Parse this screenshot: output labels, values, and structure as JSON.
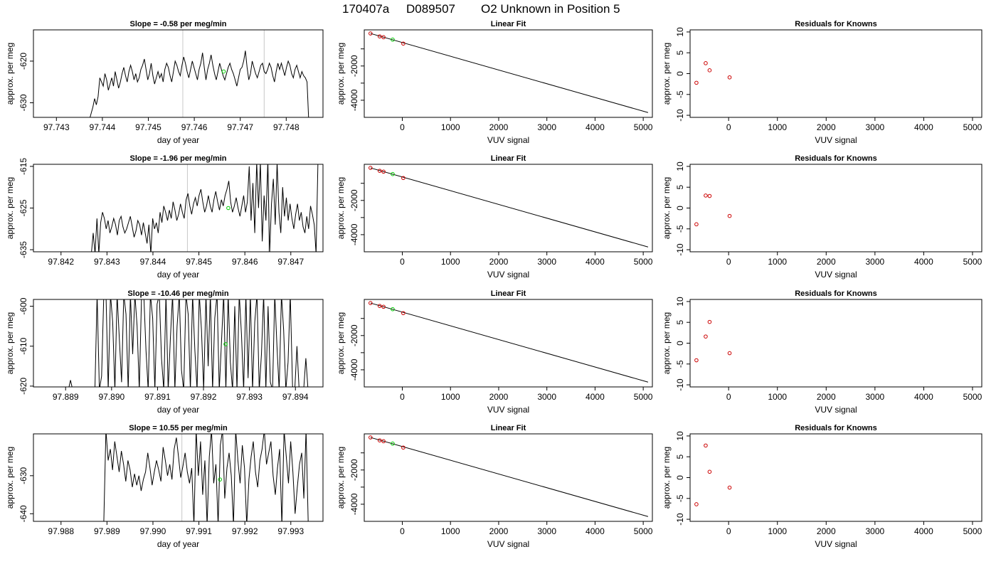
{
  "figure": {
    "title_parts": [
      "170407a",
      "D089507",
      "O2 Unknown in Position  5"
    ]
  },
  "chart_data": [
    {
      "type": "line",
      "title": "Slope =  -0.58  per meg/min",
      "xlabel": "day of year",
      "ylabel": "approx. per meg",
      "xlim": [
        97.7425,
        97.7488
      ],
      "ylim": [
        -633.5,
        -612.5
      ],
      "xticks": [
        97.743,
        97.744,
        97.745,
        97.746,
        97.747,
        97.748
      ],
      "xtick_labels": [
        "97.743",
        "97.744",
        "97.745",
        "97.746",
        "97.747",
        "97.748"
      ],
      "yticks": [
        -630,
        -620
      ],
      "ytick_labels": [
        "-630",
        "-620"
      ],
      "vlines": [
        97.74575,
        97.74752
      ],
      "marker": {
        "x": 97.74664,
        "y": -622.5,
        "color": "#00cc00"
      },
      "x_start": 97.74372,
      "x_end": 97.74849,
      "y": [
        -634,
        -632.5,
        -631,
        -629,
        -630.5,
        -628.5,
        -624,
        -625,
        -626,
        -623,
        -624.5,
        -627,
        -625.5,
        -624,
        -626,
        -622.5,
        -624.5,
        -626.5,
        -625,
        -623,
        -621.5,
        -623.5,
        -625,
        -622.5,
        -621,
        -622.5,
        -624.5,
        -623,
        -625,
        -624,
        -622,
        -621,
        -619.5,
        -622,
        -624.5,
        -623,
        -620.5,
        -623.5,
        -625.5,
        -624,
        -622.5,
        -624,
        -623,
        -625,
        -622,
        -620.5,
        -621.5,
        -623.5,
        -625,
        -622.5,
        -620,
        -621,
        -622.5,
        -623.5,
        -621,
        -619,
        -620.5,
        -622.5,
        -624,
        -622,
        -620,
        -621.5,
        -623,
        -624.5,
        -622,
        -620.5,
        -618,
        -621.5,
        -624.5,
        -622,
        -620.5,
        -618.5,
        -621,
        -623,
        -624.5,
        -622.5,
        -620.5,
        -622,
        -623.5,
        -624.5,
        -623,
        -621.5,
        -620.5,
        -622,
        -623,
        -624.5,
        -626,
        -624,
        -622,
        -621.5,
        -620,
        -617.5,
        -621.5,
        -624.5,
        -623,
        -620,
        -621.5,
        -623,
        -624,
        -622.5,
        -621,
        -620.5,
        -622.5,
        -623,
        -622,
        -620.5,
        -621.5,
        -623.5,
        -625,
        -622.5,
        -620.5,
        -622,
        -620.5,
        -622,
        -623.5,
        -621.5,
        -620,
        -621,
        -623,
        -624,
        -622,
        -621,
        -622.5,
        -624,
        -622.5,
        -623.5,
        -624,
        -625,
        -634.5
      ]
    },
    {
      "type": "scatter",
      "title": "Linear Fit",
      "xlabel": "VUV signal",
      "ylabel": "approx. per meg",
      "xlim": [
        -790,
        5190
      ],
      "ylim": [
        -5000,
        110
      ],
      "xticks": [
        0,
        1000,
        2000,
        3000,
        4000,
        5000
      ],
      "xtick_labels": [
        "0",
        "1000",
        "2000",
        "3000",
        "4000",
        "5000"
      ],
      "yticks": [
        -4000,
        -3000,
        -2000,
        -1000
      ],
      "ytick_labels": [
        "-4000",
        "",
        "-2000",
        ""
      ],
      "fit_line": {
        "x": [
          -660,
          5100
        ],
        "y": [
          -100,
          -4720
        ]
      },
      "knowns": {
        "x": [
          -660,
          -470,
          -390,
          20
        ],
        "y": [
          -100,
          -270,
          -320,
          -690
        ],
        "color": "#cc0000"
      },
      "unknown": {
        "x": [
          -200
        ],
        "y": [
          -460
        ],
        "color": "#00cc00"
      }
    },
    {
      "type": "scatter",
      "title": "Residuals for Knowns",
      "xlabel": "VUV signal",
      "ylabel": "approx. per meg",
      "xlim": [
        -790,
        5190
      ],
      "ylim": [
        -10.5,
        10.5
      ],
      "xticks": [
        0,
        1000,
        2000,
        3000,
        4000,
        5000
      ],
      "xtick_labels": [
        "0",
        "1000",
        "2000",
        "3000",
        "4000",
        "5000"
      ],
      "yticks": [
        -10,
        -5,
        0,
        5,
        10
      ],
      "ytick_labels": [
        "-10",
        "-5",
        "0",
        "5",
        "10"
      ],
      "knowns": {
        "x": [
          -660,
          -470,
          -390,
          20
        ],
        "y": [
          -2.2,
          2.5,
          0.8,
          -0.9
        ],
        "color": "#cc0000"
      }
    },
    {
      "type": "line",
      "title": "Slope =  -1.96  per meg/min",
      "xlabel": "day of year",
      "ylabel": "approx. per meg",
      "xlim": [
        97.8414,
        97.8477
      ],
      "ylim": [
        -635.5,
        -614.5
      ],
      "xticks": [
        97.842,
        97.843,
        97.844,
        97.845,
        97.846,
        97.847
      ],
      "xtick_labels": [
        "97.842",
        "97.843",
        "97.844",
        "97.845",
        "97.846",
        "97.847"
      ],
      "yticks": [
        -635,
        -625,
        -615
      ],
      "ytick_labels": [
        "-635",
        "-625",
        "-615"
      ],
      "vlines": [
        97.84475,
        97.84652
      ],
      "marker": {
        "x": 97.84564,
        "y": -625.0,
        "color": "#00cc00"
      },
      "x_start": 97.84262,
      "x_end": 97.84759,
      "y": [
        -636,
        -636,
        -631,
        -636,
        -627.5,
        -636,
        -628.5,
        -626,
        -627.5,
        -630,
        -628,
        -631,
        -629.5,
        -627.5,
        -629,
        -631.5,
        -628,
        -627,
        -629.5,
        -631,
        -630,
        -628.5,
        -627,
        -629.5,
        -632,
        -630.5,
        -628,
        -629,
        -631.5,
        -628.5,
        -631,
        -633.5,
        -629,
        -636,
        -627.5,
        -630,
        -628.5,
        -631,
        -626,
        -628.5,
        -624.5,
        -626,
        -628,
        -625.5,
        -627.5,
        -623.5,
        -625.5,
        -628,
        -626.5,
        -624,
        -626,
        -627.5,
        -623,
        -621.5,
        -624.5,
        -626.5,
        -624,
        -622.5,
        -624.5,
        -622,
        -620.5,
        -623.5,
        -626,
        -624.5,
        -622,
        -624.5,
        -626,
        -623,
        -621,
        -623.5,
        -625.5,
        -623,
        -624.5,
        -622,
        -620.5,
        -618.5,
        -623.5,
        -626,
        -624.5,
        -622.5,
        -625,
        -627,
        -624.5,
        -622,
        -626,
        -623.5,
        -615,
        -628,
        -619,
        -631,
        -614,
        -625,
        -614,
        -633,
        -622,
        -628,
        -614,
        -636,
        -624,
        -618,
        -629,
        -614,
        -626,
        -631,
        -620,
        -627,
        -622.5,
        -628,
        -624,
        -627.5,
        -630,
        -626.5,
        -624,
        -628,
        -626,
        -629.5,
        -631,
        -627,
        -630,
        -624.5,
        -626.5,
        -629,
        -636,
        -614
      ]
    },
    {
      "type": "scatter",
      "title": "Linear Fit",
      "xlabel": "VUV signal",
      "ylabel": "approx. per meg",
      "xlim": [
        -790,
        5190
      ],
      "ylim": [
        -5000,
        110
      ],
      "xticks": [
        0,
        1000,
        2000,
        3000,
        4000,
        5000
      ],
      "xtick_labels": [
        "0",
        "1000",
        "2000",
        "3000",
        "4000",
        "5000"
      ],
      "yticks": [
        -4000,
        -3000,
        -2000,
        -1000
      ],
      "ytick_labels": [
        "-4000",
        "",
        "-2000",
        ""
      ],
      "fit_line": {
        "x": [
          -660,
          5100
        ],
        "y": [
          -100,
          -4720
        ]
      },
      "knowns": {
        "x": [
          -660,
          -470,
          -390,
          20
        ],
        "y": [
          -100,
          -270,
          -320,
          -690
        ],
        "color": "#cc0000"
      },
      "unknown": {
        "x": [
          -200
        ],
        "y": [
          -460
        ],
        "color": "#00cc00"
      }
    },
    {
      "type": "scatter",
      "title": "Residuals for Knowns",
      "xlabel": "VUV signal",
      "ylabel": "approx. per meg",
      "xlim": [
        -790,
        5190
      ],
      "ylim": [
        -10.5,
        10.5
      ],
      "xticks": [
        0,
        1000,
        2000,
        3000,
        4000,
        5000
      ],
      "xtick_labels": [
        "0",
        "1000",
        "2000",
        "3000",
        "4000",
        "5000"
      ],
      "yticks": [
        -10,
        -5,
        0,
        5,
        10
      ],
      "ytick_labels": [
        "-10",
        "-5",
        "0",
        "5",
        "10"
      ],
      "knowns": {
        "x": [
          -660,
          -470,
          -390,
          20
        ],
        "y": [
          -3.9,
          3.0,
          2.9,
          -1.9
        ],
        "color": "#cc0000"
      }
    },
    {
      "type": "line",
      "title": "Slope =  -10.46  per meg/min",
      "xlabel": "day of year",
      "ylabel": "approx. per meg",
      "xlim": [
        97.8883,
        97.8946
      ],
      "ylim": [
        -620.2,
        -598.3
      ],
      "xticks": [
        97.889,
        97.89,
        97.891,
        97.892,
        97.893,
        97.894
      ],
      "xtick_labels": [
        "97.889",
        "97.890",
        "97.891",
        "97.892",
        "97.893",
        "97.894"
      ],
      "yticks": [
        -620,
        -610,
        -600
      ],
      "ytick_labels": [
        "-620",
        "-610",
        "-600"
      ],
      "marker": {
        "x": 97.89248,
        "y": -609.5,
        "color": "#00cc00"
      },
      "x_start": 97.88843,
      "x_end": 97.89442,
      "y": [
        -621,
        -621,
        -621,
        -621,
        -621,
        -621,
        -621,
        -621,
        -621,
        -621,
        -621,
        -621,
        -621,
        -621,
        -618.5,
        -621,
        -621,
        -621,
        -621,
        -621,
        -621,
        -621,
        -621,
        -621,
        -621,
        -621,
        -597,
        -621,
        -617.5,
        -597,
        -597,
        -621,
        -597,
        -604,
        -621,
        -597,
        -608,
        -619,
        -597,
        -602,
        -621,
        -597,
        -612,
        -597,
        -605,
        -621,
        -597,
        -597,
        -611,
        -621,
        -597,
        -603,
        -621,
        -599.5,
        -597,
        -613,
        -621,
        -597,
        -621,
        -608,
        -597,
        -621,
        -605,
        -597,
        -616,
        -621,
        -597,
        -602,
        -621,
        -597,
        -611,
        -621,
        -597,
        -606,
        -621,
        -597,
        -615,
        -597,
        -621,
        -603,
        -597,
        -621,
        -609,
        -597,
        -621,
        -597,
        -614,
        -621,
        -600,
        -621,
        -597,
        -607,
        -621,
        -597,
        -618,
        -597,
        -621,
        -604,
        -597,
        -621,
        -612,
        -597,
        -621,
        -600,
        -619,
        -621,
        -597,
        -610,
        -621,
        -597,
        -606,
        -621,
        -614,
        -597,
        -620,
        -621,
        -610,
        -621,
        -621,
        -621,
        -613,
        -621,
        -621,
        -621,
        -621
      ]
    },
    {
      "type": "scatter",
      "title": "Linear Fit",
      "xlabel": "VUV signal",
      "ylabel": "approx. per meg",
      "xlim": [
        -790,
        5190
      ],
      "ylim": [
        -5000,
        110
      ],
      "xticks": [
        0,
        1000,
        2000,
        3000,
        4000,
        5000
      ],
      "xtick_labels": [
        "0",
        "1000",
        "2000",
        "3000",
        "4000",
        "5000"
      ],
      "yticks": [
        -4000,
        -3000,
        -2000,
        -1000
      ],
      "ytick_labels": [
        "-4000",
        "",
        "-2000",
        ""
      ],
      "fit_line": {
        "x": [
          -660,
          5100
        ],
        "y": [
          -100,
          -4720
        ]
      },
      "knowns": {
        "x": [
          -660,
          -470,
          -390,
          20
        ],
        "y": [
          -100,
          -270,
          -320,
          -690
        ],
        "color": "#cc0000"
      },
      "unknown": {
        "x": [
          -200
        ],
        "y": [
          -460
        ],
        "color": "#00cc00"
      }
    },
    {
      "type": "scatter",
      "title": "Residuals for Knowns",
      "xlabel": "VUV signal",
      "ylabel": "approx. per meg",
      "xlim": [
        -790,
        5190
      ],
      "ylim": [
        -10.5,
        10.5
      ],
      "xticks": [
        0,
        1000,
        2000,
        3000,
        4000,
        5000
      ],
      "xtick_labels": [
        "0",
        "1000",
        "2000",
        "3000",
        "4000",
        "5000"
      ],
      "yticks": [
        -10,
        -5,
        0,
        5,
        10
      ],
      "ytick_labels": [
        "-10",
        "-5",
        "0",
        "5",
        "10"
      ],
      "knowns": {
        "x": [
          -660,
          -470,
          -390,
          20
        ],
        "y": [
          -4.1,
          1.6,
          5.1,
          -2.4
        ],
        "color": "#cc0000"
      }
    },
    {
      "type": "line",
      "title": "Slope =  10.55  per meg/min",
      "xlabel": "day of year",
      "ylabel": "approx. per meg",
      "xlim": [
        97.9874,
        97.9937
      ],
      "ylim": [
        -642,
        -619
      ],
      "xticks": [
        97.988,
        97.989,
        97.99,
        97.991,
        97.992,
        97.993
      ],
      "xtick_labels": [
        "97.988",
        "97.989",
        "97.990",
        "97.991",
        "97.992",
        "97.993"
      ],
      "yticks": [
        -640,
        -630
      ],
      "ytick_labels": [
        "-640",
        "-630"
      ],
      "vlines": [
        97.99063
      ],
      "marker": {
        "x": 97.99146,
        "y": -631.0,
        "color": "#00cc00"
      },
      "x_start": 97.98893,
      "x_end": 97.99338,
      "y": [
        -643,
        -618,
        -626,
        -623,
        -628.5,
        -621,
        -625,
        -629,
        -623.5,
        -627,
        -631.5,
        -626,
        -628.5,
        -633,
        -629.5,
        -632.5,
        -630,
        -634,
        -631,
        -629,
        -624,
        -628,
        -632.5,
        -629,
        -626,
        -628.5,
        -631.5,
        -622.5,
        -626,
        -630,
        -627,
        -631,
        -623,
        -620,
        -625,
        -630.5,
        -627.5,
        -624,
        -629,
        -632,
        -628,
        -643,
        -618,
        -630,
        -621,
        -635,
        -626,
        -643,
        -625,
        -618,
        -632,
        -627,
        -643,
        -622,
        -618,
        -636,
        -628,
        -624,
        -630,
        -643,
        -618,
        -626,
        -632,
        -622,
        -628,
        -643,
        -631,
        -625,
        -621,
        -629,
        -633,
        -626,
        -623,
        -618,
        -627,
        -624,
        -621,
        -630,
        -635,
        -628,
        -623,
        -643,
        -618,
        -625,
        -632,
        -621,
        -629,
        -640,
        -633,
        -627,
        -624,
        -636,
        -618,
        -643
      ]
    },
    {
      "type": "scatter",
      "title": "Linear Fit",
      "xlabel": "VUV signal",
      "ylabel": "approx. per meg",
      "xlim": [
        -790,
        5190
      ],
      "ylim": [
        -5000,
        110
      ],
      "xticks": [
        0,
        1000,
        2000,
        3000,
        4000,
        5000
      ],
      "xtick_labels": [
        "0",
        "1000",
        "2000",
        "3000",
        "4000",
        "5000"
      ],
      "yticks": [
        -4000,
        -3000,
        -2000,
        -1000
      ],
      "ytick_labels": [
        "-4000",
        "",
        "-2000",
        ""
      ],
      "fit_line": {
        "x": [
          -660,
          5100
        ],
        "y": [
          -100,
          -4720
        ]
      },
      "knowns": {
        "x": [
          -660,
          -470,
          -390,
          20
        ],
        "y": [
          -100,
          -270,
          -320,
          -690
        ],
        "color": "#cc0000"
      },
      "unknown": {
        "x": [
          -200
        ],
        "y": [
          -460
        ],
        "color": "#00cc00"
      }
    },
    {
      "type": "scatter",
      "title": "Residuals for Knowns",
      "xlabel": "VUV signal",
      "ylabel": "approx. per meg",
      "xlim": [
        -790,
        5190
      ],
      "ylim": [
        -10.5,
        10.5
      ],
      "xticks": [
        0,
        1000,
        2000,
        3000,
        4000,
        5000
      ],
      "xtick_labels": [
        "0",
        "1000",
        "2000",
        "3000",
        "4000",
        "5000"
      ],
      "yticks": [
        -10,
        -5,
        0,
        5,
        10
      ],
      "ytick_labels": [
        "-10",
        "-5",
        "0",
        "5",
        "10"
      ],
      "knowns": {
        "x": [
          -660,
          -470,
          -390,
          20
        ],
        "y": [
          -6.4,
          7.7,
          1.4,
          -2.4
        ],
        "color": "#cc0000"
      }
    }
  ]
}
